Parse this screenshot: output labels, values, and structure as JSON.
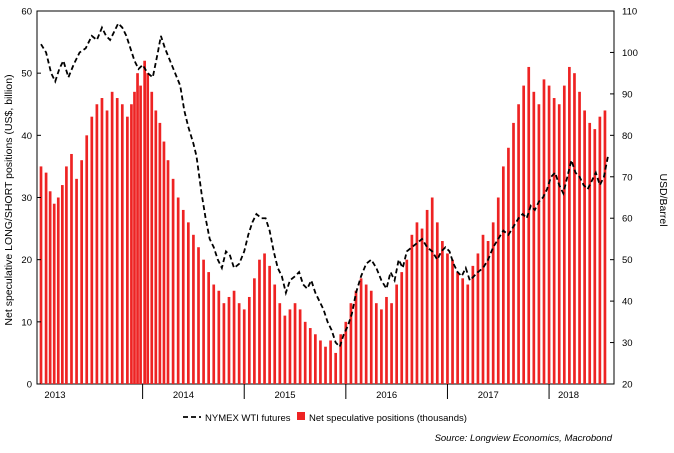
{
  "chart_data": {
    "type": "bar+line",
    "ylabel_left": "Net speculative LONG/SHORT positions (US$, billion)",
    "ylabel_right": "USD/Barrel",
    "ylim_left": [
      0,
      60
    ],
    "ylim_right": [
      20,
      110
    ],
    "yticks_left": [
      "0",
      "10",
      "20",
      "30",
      "40",
      "50",
      "60"
    ],
    "yticks_right": [
      "20",
      "30",
      "40",
      "50",
      "60",
      "70",
      "80",
      "90",
      "100",
      "110"
    ],
    "xticks": [
      "2013",
      "2014",
      "2015",
      "2016",
      "2017",
      "2018"
    ],
    "xlim": [
      2013.0,
      2018.58
    ],
    "grid": false,
    "series": [
      {
        "name": "NYMEX WTI futures",
        "kind": "line",
        "axis": "right",
        "color": "#000000",
        "style": "dashed",
        "points": [
          [
            2013.0,
            102
          ],
          [
            2013.05,
            100
          ],
          [
            2013.1,
            95
          ],
          [
            2013.14,
            93
          ],
          [
            2013.18,
            96
          ],
          [
            2013.22,
            98
          ],
          [
            2013.27,
            94
          ],
          [
            2013.32,
            97
          ],
          [
            2013.38,
            100
          ],
          [
            2013.44,
            101
          ],
          [
            2013.5,
            104
          ],
          [
            2013.55,
            103
          ],
          [
            2013.6,
            106
          ],
          [
            2013.64,
            104
          ],
          [
            2013.68,
            103
          ],
          [
            2013.72,
            105
          ],
          [
            2013.76,
            107
          ],
          [
            2013.8,
            106
          ],
          [
            2013.84,
            104
          ],
          [
            2013.88,
            101
          ],
          [
            2013.92,
            98
          ],
          [
            2013.96,
            96
          ],
          [
            2014.0,
            97
          ],
          [
            2014.05,
            95
          ],
          [
            2014.1,
            94
          ],
          [
            2014.15,
            100
          ],
          [
            2014.18,
            104
          ],
          [
            2014.22,
            101
          ],
          [
            2014.27,
            98
          ],
          [
            2014.32,
            95
          ],
          [
            2014.37,
            92
          ],
          [
            2014.41,
            86
          ],
          [
            2014.45,
            82
          ],
          [
            2014.5,
            78
          ],
          [
            2014.53,
            75
          ],
          [
            2014.58,
            66
          ],
          [
            2014.62,
            60
          ],
          [
            2014.66,
            55
          ],
          [
            2014.7,
            53
          ],
          [
            2014.74,
            50
          ],
          [
            2014.78,
            48
          ],
          [
            2014.82,
            52
          ],
          [
            2014.86,
            51
          ],
          [
            2014.9,
            48
          ],
          [
            2014.95,
            49
          ],
          [
            2015.0,
            52
          ],
          [
            2015.04,
            56
          ],
          [
            2015.08,
            59
          ],
          [
            2015.12,
            61
          ],
          [
            2015.17,
            60
          ],
          [
            2015.21,
            60
          ],
          [
            2015.25,
            57
          ],
          [
            2015.29,
            52
          ],
          [
            2015.33,
            48
          ],
          [
            2015.37,
            46
          ],
          [
            2015.41,
            42
          ],
          [
            2015.45,
            45
          ],
          [
            2015.5,
            46
          ],
          [
            2015.54,
            47
          ],
          [
            2015.58,
            44
          ],
          [
            2015.62,
            43
          ],
          [
            2015.66,
            45
          ],
          [
            2015.7,
            42
          ],
          [
            2015.74,
            40
          ],
          [
            2015.78,
            38
          ],
          [
            2015.82,
            35
          ],
          [
            2015.86,
            33
          ],
          [
            2015.9,
            30
          ],
          [
            2015.94,
            29
          ],
          [
            2015.98,
            32
          ],
          [
            2016.02,
            34
          ],
          [
            2016.06,
            37
          ],
          [
            2016.1,
            42
          ],
          [
            2016.15,
            46
          ],
          [
            2016.2,
            49
          ],
          [
            2016.25,
            50
          ],
          [
            2016.3,
            48
          ],
          [
            2016.35,
            45
          ],
          [
            2016.4,
            43
          ],
          [
            2016.44,
            47
          ],
          [
            2016.48,
            45
          ],
          [
            2016.52,
            50
          ],
          [
            2016.56,
            48
          ],
          [
            2016.6,
            52
          ],
          [
            2016.65,
            53
          ],
          [
            2016.7,
            54
          ],
          [
            2016.75,
            55
          ],
          [
            2016.8,
            53
          ],
          [
            2016.85,
            52
          ],
          [
            2016.9,
            50
          ],
          [
            2016.94,
            52
          ],
          [
            2016.98,
            53
          ],
          [
            2017.02,
            52
          ],
          [
            2017.06,
            49
          ],
          [
            2017.1,
            47
          ],
          [
            2017.14,
            46
          ],
          [
            2017.18,
            48
          ],
          [
            2017.22,
            45
          ],
          [
            2017.26,
            46
          ],
          [
            2017.3,
            47
          ],
          [
            2017.35,
            48
          ],
          [
            2017.4,
            50
          ],
          [
            2017.45,
            53
          ],
          [
            2017.5,
            55
          ],
          [
            2017.55,
            57
          ],
          [
            2017.6,
            56
          ],
          [
            2017.65,
            58
          ],
          [
            2017.7,
            60
          ],
          [
            2017.74,
            61
          ],
          [
            2017.78,
            60
          ],
          [
            2017.82,
            63
          ],
          [
            2017.86,
            62
          ],
          [
            2017.9,
            64
          ],
          [
            2017.94,
            65
          ],
          [
            2017.98,
            67
          ],
          [
            2018.02,
            70
          ],
          [
            2018.06,
            71
          ],
          [
            2018.1,
            68
          ],
          [
            2018.14,
            66
          ],
          [
            2018.18,
            70
          ],
          [
            2018.22,
            74
          ],
          [
            2018.26,
            71
          ],
          [
            2018.3,
            70
          ],
          [
            2018.34,
            68
          ],
          [
            2018.38,
            67
          ],
          [
            2018.42,
            69
          ],
          [
            2018.46,
            71
          ],
          [
            2018.5,
            68
          ],
          [
            2018.54,
            70
          ],
          [
            2018.58,
            75
          ]
        ]
      },
      {
        "name": "Net speculative positions (thousands)",
        "kind": "bar",
        "axis": "left",
        "color": "#ee2323",
        "points": [
          [
            2013.0,
            35
          ],
          [
            2013.05,
            34
          ],
          [
            2013.09,
            31
          ],
          [
            2013.13,
            29
          ],
          [
            2013.17,
            30
          ],
          [
            2013.21,
            32
          ],
          [
            2013.25,
            35
          ],
          [
            2013.3,
            37
          ],
          [
            2013.35,
            33
          ],
          [
            2013.4,
            36
          ],
          [
            2013.45,
            40
          ],
          [
            2013.5,
            43
          ],
          [
            2013.55,
            45
          ],
          [
            2013.6,
            46
          ],
          [
            2013.65,
            44
          ],
          [
            2013.7,
            47
          ],
          [
            2013.75,
            46
          ],
          [
            2013.8,
            45
          ],
          [
            2013.85,
            43
          ],
          [
            2013.89,
            45
          ],
          [
            2013.92,
            47
          ],
          [
            2013.95,
            50
          ],
          [
            2013.98,
            48
          ],
          [
            2014.02,
            52
          ],
          [
            2014.05,
            50
          ],
          [
            2014.09,
            47
          ],
          [
            2014.13,
            44
          ],
          [
            2014.17,
            42
          ],
          [
            2014.21,
            39
          ],
          [
            2014.25,
            36
          ],
          [
            2014.3,
            33
          ],
          [
            2014.35,
            30
          ],
          [
            2014.4,
            28
          ],
          [
            2014.45,
            26
          ],
          [
            2014.5,
            24
          ],
          [
            2014.55,
            22
          ],
          [
            2014.6,
            20
          ],
          [
            2014.65,
            18
          ],
          [
            2014.7,
            16
          ],
          [
            2014.75,
            15
          ],
          [
            2014.8,
            13
          ],
          [
            2014.85,
            14
          ],
          [
            2014.9,
            15
          ],
          [
            2014.95,
            13
          ],
          [
            2015.0,
            12
          ],
          [
            2015.05,
            14
          ],
          [
            2015.1,
            17
          ],
          [
            2015.15,
            20
          ],
          [
            2015.2,
            21
          ],
          [
            2015.25,
            19
          ],
          [
            2015.3,
            16
          ],
          [
            2015.35,
            13
          ],
          [
            2015.4,
            11
          ],
          [
            2015.45,
            12
          ],
          [
            2015.5,
            13
          ],
          [
            2015.55,
            12
          ],
          [
            2015.6,
            10
          ],
          [
            2015.65,
            9
          ],
          [
            2015.7,
            8
          ],
          [
            2015.75,
            7
          ],
          [
            2015.8,
            6
          ],
          [
            2015.85,
            7
          ],
          [
            2015.9,
            5
          ],
          [
            2015.95,
            8
          ],
          [
            2016.0,
            10
          ],
          [
            2016.05,
            13
          ],
          [
            2016.1,
            15
          ],
          [
            2016.15,
            17
          ],
          [
            2016.2,
            16
          ],
          [
            2016.25,
            15
          ],
          [
            2016.3,
            13
          ],
          [
            2016.35,
            12
          ],
          [
            2016.4,
            14
          ],
          [
            2016.45,
            13
          ],
          [
            2016.5,
            16
          ],
          [
            2016.55,
            18
          ],
          [
            2016.6,
            20
          ],
          [
            2016.65,
            24
          ],
          [
            2016.7,
            26
          ],
          [
            2016.75,
            25
          ],
          [
            2016.8,
            28
          ],
          [
            2016.85,
            30
          ],
          [
            2016.9,
            26
          ],
          [
            2016.95,
            23
          ],
          [
            2017.0,
            21
          ],
          [
            2017.05,
            20
          ],
          [
            2017.1,
            18
          ],
          [
            2017.15,
            17
          ],
          [
            2017.2,
            16
          ],
          [
            2017.25,
            19
          ],
          [
            2017.3,
            21
          ],
          [
            2017.35,
            24
          ],
          [
            2017.4,
            23
          ],
          [
            2017.45,
            26
          ],
          [
            2017.5,
            30
          ],
          [
            2017.55,
            35
          ],
          [
            2017.6,
            38
          ],
          [
            2017.65,
            42
          ],
          [
            2017.7,
            45
          ],
          [
            2017.75,
            48
          ],
          [
            2017.8,
            51
          ],
          [
            2017.85,
            47
          ],
          [
            2017.9,
            45
          ],
          [
            2017.95,
            49
          ],
          [
            2018.0,
            48
          ],
          [
            2018.05,
            46
          ],
          [
            2018.1,
            45
          ],
          [
            2018.15,
            48
          ],
          [
            2018.2,
            51
          ],
          [
            2018.25,
            50
          ],
          [
            2018.3,
            47
          ],
          [
            2018.35,
            44
          ],
          [
            2018.4,
            42
          ],
          [
            2018.45,
            41
          ],
          [
            2018.5,
            43
          ],
          [
            2018.55,
            44
          ]
        ]
      }
    ],
    "source": "Source: Longview Economics, Macrobond"
  }
}
